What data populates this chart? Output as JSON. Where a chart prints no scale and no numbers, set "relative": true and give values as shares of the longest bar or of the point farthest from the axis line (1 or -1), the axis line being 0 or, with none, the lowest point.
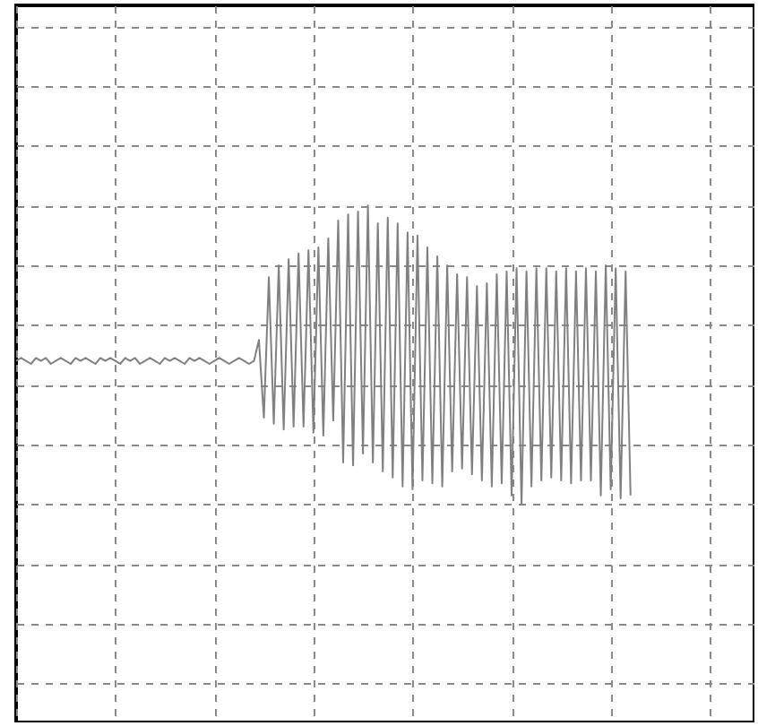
{
  "chart_data": {
    "type": "line",
    "relative": true,
    "grid": true,
    "color": "#808080",
    "categories": [
      null,
      null,
      null,
      null,
      null,
      null,
      null,
      null,
      null,
      null,
      null,
      null,
      null,
      null,
      null,
      null,
      null,
      null,
      null,
      null,
      null,
      null,
      null,
      null,
      null,
      null,
      null,
      null,
      null,
      null,
      null,
      null,
      null,
      null,
      null,
      null,
      null,
      null,
      null,
      null,
      null,
      null,
      null,
      null,
      null,
      null,
      null,
      null,
      null,
      null,
      null,
      null,
      null,
      null,
      null,
      null,
      null,
      null,
      null,
      null,
      null,
      null,
      null,
      null,
      null,
      null,
      null,
      null,
      null,
      null,
      null,
      null,
      null,
      null,
      null,
      null,
      null,
      null,
      null,
      null,
      null,
      null,
      null,
      null,
      null,
      null,
      null,
      null,
      null,
      null,
      null,
      null,
      null,
      null,
      null,
      null,
      null,
      null,
      null,
      null,
      null,
      null,
      null,
      null,
      null,
      null,
      null,
      null,
      null,
      null,
      null,
      null,
      null,
      null,
      null,
      null,
      null,
      null,
      null,
      null,
      null,
      null,
      null,
      null,
      null,
      null,
      null,
      null,
      null,
      null,
      null,
      null,
      null,
      null,
      null,
      null,
      null,
      null,
      null,
      null,
      null,
      null,
      null,
      null,
      null,
      null,
      null,
      null,
      null,
      null
    ],
    "values": [
      0.48,
      0.49,
      0.48,
      0.47,
      0.49,
      0.48,
      0.49,
      0.47,
      0.48,
      0.49,
      0.48,
      0.47,
      0.49,
      0.48,
      0.49,
      0.48,
      0.47,
      0.49,
      0.48,
      0.49,
      0.48,
      0.47,
      0.49,
      0.48,
      0.49,
      0.47,
      0.48,
      0.49,
      0.48,
      0.47,
      0.49,
      0.48,
      0.49,
      0.48,
      0.47,
      0.49,
      0.48,
      0.49,
      0.48,
      0.47,
      0.48,
      0.49,
      0.48,
      0.47,
      0.48,
      0.49,
      0.48,
      0.47,
      0.48,
      0.55,
      0.29,
      0.76,
      0.27,
      0.8,
      0.25,
      0.82,
      0.26,
      0.84,
      0.26,
      0.85,
      0.24,
      0.86,
      0.23,
      0.89,
      0.28,
      0.95,
      0.14,
      0.97,
      0.13,
      0.98,
      0.17,
      1,
      0.14,
      0.94,
      0.11,
      0.96,
      0.09,
      0.94,
      0.06,
      0.91,
      0.05,
      0.9,
      0.08,
      0.86,
      0.07,
      0.83,
      0.06,
      0.8,
      0.11,
      0.77,
      0.12,
      0.76,
      0.1,
      0.73,
      0.08,
      0.74,
      0.06,
      0.77,
      0.07,
      0.78,
      0.03,
      0.79,
      0,
      0.78,
      0.06,
      0.79,
      0.08,
      0.79,
      0.09,
      0.78,
      0.08,
      0.79,
      0.07,
      0.78,
      0.08,
      0.79,
      0.08,
      0.78,
      0.03,
      0.8,
      0.05,
      0.79,
      0.02,
      0.78,
      0.03,
      null,
      null,
      null,
      null,
      null,
      null,
      null,
      null,
      null,
      null,
      null,
      null,
      null,
      null,
      null,
      null,
      null,
      null,
      null,
      null,
      null,
      null,
      null,
      null,
      null
    ]
  }
}
